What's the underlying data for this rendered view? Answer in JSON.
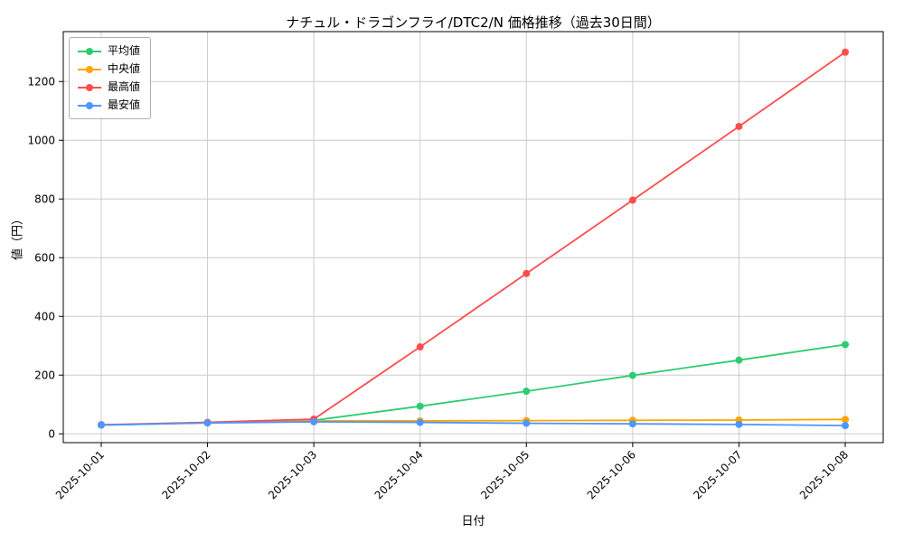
{
  "chart_data": {
    "type": "line",
    "title": "ナチュル・ドラゴンフライ/DTC2/N 価格推移（過去30日間）",
    "xlabel": "日付",
    "ylabel": "値（円）",
    "categories": [
      "2025-10-01",
      "2025-10-02",
      "2025-10-03",
      "2025-10-04",
      "2025-10-05",
      "2025-10-06",
      "2025-10-07",
      "2025-10-08"
    ],
    "series": [
      {
        "key": "average",
        "name": "平均値",
        "color": "#2ecc71",
        "values": [
          30,
          38,
          46,
          94,
          145,
          199,
          251,
          304
        ]
      },
      {
        "key": "median",
        "name": "中央値",
        "color": "#ffa500",
        "values": [
          30,
          38,
          44,
          44,
          45,
          46,
          47,
          49
        ]
      },
      {
        "key": "max",
        "name": "最高値",
        "color": "#ff4d4d",
        "values": [
          31,
          39,
          50,
          296,
          546,
          796,
          1047,
          1300
        ]
      },
      {
        "key": "min",
        "name": "最安値",
        "color": "#4d96ff",
        "values": [
          30,
          37,
          41,
          39,
          36,
          34,
          32,
          28
        ]
      }
    ],
    "ylim": [
      -30,
      1370
    ],
    "yticks": [
      0,
      200,
      400,
      600,
      800,
      1000,
      1200
    ],
    "grid": true,
    "legend_position": "upper left"
  }
}
